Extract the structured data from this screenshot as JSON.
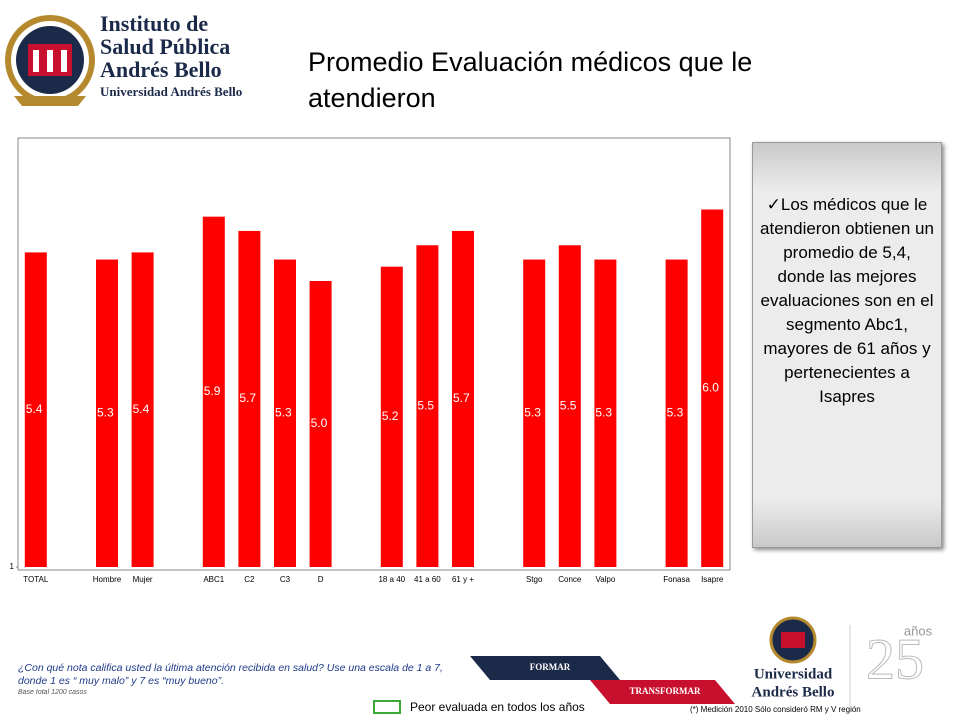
{
  "header": {
    "institute": [
      "Instituto de",
      "Salud Pública",
      "Andrés Bello"
    ],
    "university": "Universidad Andrés Bello"
  },
  "chart_data": {
    "type": "bar",
    "title": "Promedio Evaluación médicos que le atendieron",
    "categories": [
      "TOTAL",
      null,
      "Hombre",
      "Mujer",
      null,
      "ABC1",
      "C2",
      "C3",
      "D",
      null,
      "18 a 40",
      "41 a 60",
      "61 y +",
      null,
      "Stgo",
      "Conce",
      "Valpo",
      null,
      "Fonasa",
      "Isapre"
    ],
    "values": [
      5.4,
      null,
      5.3,
      5.4,
      null,
      5.9,
      5.7,
      5.3,
      5.0,
      null,
      5.2,
      5.5,
      5.7,
      null,
      5.3,
      5.5,
      5.3,
      null,
      5.3,
      6.0
    ],
    "value_labels": [
      "5.4",
      null,
      "5.3",
      "5.4",
      null,
      "5.9",
      "5.7",
      "5.3",
      "5.0",
      null,
      "5.2",
      "5.5",
      "5.7",
      null,
      "5.3",
      "5.5",
      "5.3",
      null,
      "5.3",
      "6.0"
    ],
    "color": "#ff0000",
    "ylim": [
      1,
      7
    ],
    "yticks": [
      1
    ]
  },
  "insight": "Los médicos que le atendieron obtienen un promedio de 5,4, donde las mejores evaluaciones son en el segmento Abc1, mayores de 61 años y pertenecientes a Isapres",
  "question": "¿Con qué nota califica usted la última atención recibida en salud? Use una escala de 1 a 7, donde 1 es “ muy malo” y 7 es “muy bueno”.",
  "base": "Base total 1200 casos",
  "legend_note": "Peor evaluada en todos los años",
  "footnote": "(*) Medición 2010 Sólo consideró RM y V región",
  "banner": [
    "FORMAR",
    "TRANSFORMAR"
  ],
  "footer_logo": [
    "Universidad",
    "Andrés Bello"
  ],
  "anniversary": [
    "25",
    "años"
  ]
}
